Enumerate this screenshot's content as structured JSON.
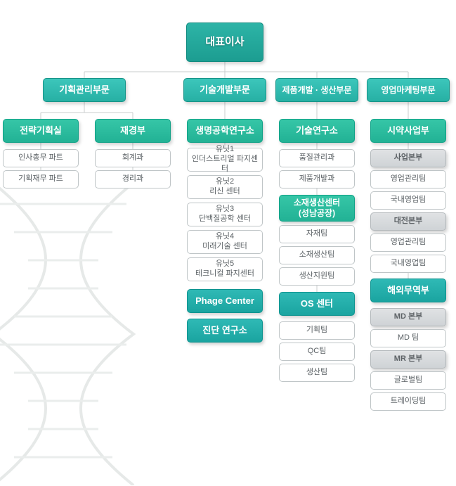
{
  "ceo": "대표이사",
  "divisions": {
    "plan": "기획관리부문",
    "tech": "기술개발부문",
    "prod": "제품개발 · 생산부문",
    "sales": "영업마케팅부문"
  },
  "plan": {
    "strategy": "전략기획실",
    "finance": "재경부",
    "strategy_parts": [
      "인사총무 파트",
      "기획재무 파트"
    ],
    "finance_parts": [
      "회계과",
      "경리과"
    ]
  },
  "tech": {
    "bio": "생명공학연구소",
    "units": [
      "유닛1\n인더스트리얼 파지센터",
      "유닛2\n리신 센터",
      "유닛3\n단백질공학 센터",
      "유닛4\n미래기술 센터",
      "유닛5\n테크니컬 파지센터"
    ],
    "phage": "Phage Center",
    "diag": "진단 연구소"
  },
  "prod": {
    "rnd": "기술연구소",
    "rnd_parts": [
      "품질관리과",
      "제품개발과"
    ],
    "mfg": "소재생산센터\n(성남공장)",
    "mfg_parts": [
      "자재팀",
      "소재생산팀",
      "생산지원팀"
    ],
    "os": "OS 센터",
    "os_parts": [
      "기획팀",
      "QC팀",
      "생산팀"
    ]
  },
  "sales": {
    "rx": "시약사업부",
    "rx_parts": [
      "사업본부",
      "영업관리팀",
      "국내영업팀",
      "대전본부",
      "영업관리팀",
      "국내영업팀"
    ],
    "trade": "해외무역부",
    "trade_parts": [
      "MD 본부",
      "MD 팀",
      "MR 본부",
      "글로벌팀",
      "트레이딩팀"
    ],
    "hq_idx": [
      0,
      3
    ],
    "trade_hq_idx": [
      0,
      2
    ]
  },
  "colors": {
    "line": "#c8ccce"
  }
}
